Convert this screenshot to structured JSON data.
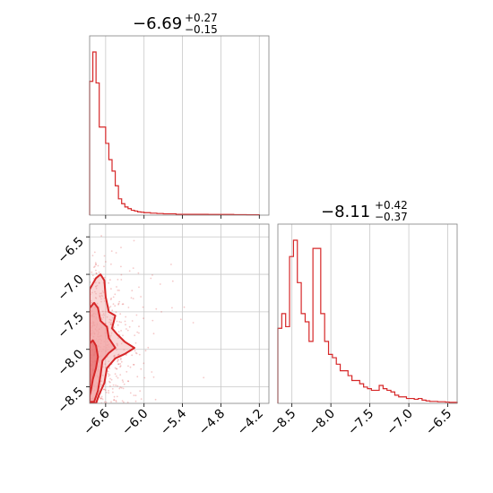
{
  "colors": {
    "line": "#d62728",
    "fill": "#f2a6a6",
    "grid": "#c8c8c8",
    "frame": "#808080"
  },
  "chart_data": [
    {
      "type": "histogram",
      "title": {
        "main": "−6.69",
        "sup": "+0.27",
        "sub": "−0.15"
      },
      "xlim": [
        -6.85,
        -4.05
      ],
      "xticks": [
        -6.6,
        -6.0,
        -5.4,
        -4.8,
        -4.2
      ],
      "bin_edges": [
        -6.85,
        -6.8,
        -6.75,
        -6.7,
        -6.65,
        -6.6,
        -6.55,
        -6.5,
        -6.45,
        -6.4,
        -6.35,
        -6.3,
        -6.25,
        -6.2,
        -6.15,
        -6.1,
        -6.05,
        -6.0,
        -5.9,
        -5.8,
        -5.7,
        -5.5,
        -5.0,
        -4.6,
        -4.4,
        -4.2
      ],
      "values": [
        0.82,
        1.0,
        0.81,
        0.54,
        0.54,
        0.44,
        0.34,
        0.27,
        0.18,
        0.1,
        0.07,
        0.05,
        0.04,
        0.03,
        0.025,
        0.02,
        0.018,
        0.015,
        0.012,
        0.01,
        0.008,
        0.005,
        0.004,
        0.003,
        0.002
      ]
    },
    {
      "type": "scatter",
      "xlabel": "",
      "ylabel": "",
      "xlim": [
        -6.85,
        -4.05
      ],
      "ylim": [
        -8.72,
        -6.33
      ],
      "xticks": [
        -6.6,
        -6.0,
        -5.4,
        -4.8,
        -4.2
      ],
      "yticks": [
        -6.5,
        -7.0,
        -7.5,
        -8.0,
        -8.5
      ],
      "xtick_labels": [
        "−6.6",
        "−6.0",
        "−5.4",
        "−4.8",
        "−4.2"
      ],
      "ytick_labels": [
        "−6.5",
        "−7.0",
        "−7.5",
        "−8.0",
        "−8.5"
      ],
      "contours": [
        {
          "level": "outer",
          "points": [
            [
              -6.85,
              -8.72
            ],
            [
              -6.85,
              -7.2
            ],
            [
              -6.75,
              -7.05
            ],
            [
              -6.68,
              -7.0
            ],
            [
              -6.62,
              -7.08
            ],
            [
              -6.6,
              -7.3
            ],
            [
              -6.55,
              -7.5
            ],
            [
              -6.45,
              -7.55
            ],
            [
              -6.5,
              -7.72
            ],
            [
              -6.42,
              -7.8
            ],
            [
              -6.3,
              -7.9
            ],
            [
              -6.15,
              -7.98
            ],
            [
              -6.3,
              -8.06
            ],
            [
              -6.45,
              -8.12
            ],
            [
              -6.58,
              -8.25
            ],
            [
              -6.62,
              -8.45
            ],
            [
              -6.7,
              -8.6
            ],
            [
              -6.75,
              -8.72
            ]
          ]
        },
        {
          "level": "mid",
          "points": [
            [
              -6.85,
              -8.7
            ],
            [
              -6.85,
              -7.45
            ],
            [
              -6.78,
              -7.38
            ],
            [
              -6.72,
              -7.45
            ],
            [
              -6.68,
              -7.62
            ],
            [
              -6.58,
              -7.7
            ],
            [
              -6.55,
              -7.85
            ],
            [
              -6.45,
              -7.98
            ],
            [
              -6.55,
              -8.05
            ],
            [
              -6.65,
              -8.15
            ],
            [
              -6.68,
              -8.35
            ],
            [
              -6.72,
              -8.55
            ],
            [
              -6.78,
              -8.7
            ]
          ]
        },
        {
          "level": "inner",
          "points": [
            [
              -6.85,
              -8.62
            ],
            [
              -6.85,
              -7.92
            ],
            [
              -6.8,
              -7.88
            ],
            [
              -6.75,
              -7.95
            ],
            [
              -6.72,
              -8.1
            ],
            [
              -6.75,
              -8.25
            ],
            [
              -6.8,
              -8.4
            ],
            [
              -6.83,
              -8.55
            ]
          ]
        }
      ]
    },
    {
      "type": "histogram",
      "title": {
        "main": "−8.11",
        "sup": "+0.42",
        "sub": "−0.37"
      },
      "xlim": [
        -8.68,
        -6.38
      ],
      "xticks": [
        -8.5,
        -8.0,
        -7.5,
        -7.0,
        -6.5
      ],
      "xtick_labels": [
        "−8.5",
        "−8.0",
        "−7.5",
        "−7.0",
        "−6.5"
      ],
      "bin_edges": [
        -8.68,
        -8.63,
        -8.58,
        -8.53,
        -8.48,
        -8.43,
        -8.38,
        -8.33,
        -8.28,
        -8.23,
        -8.18,
        -8.13,
        -8.08,
        -8.03,
        -7.98,
        -7.93,
        -7.88,
        -7.83,
        -7.78,
        -7.73,
        -7.68,
        -7.63,
        -7.58,
        -7.53,
        -7.48,
        -7.43,
        -7.38,
        -7.33,
        -7.28,
        -7.23,
        -7.18,
        -7.13,
        -7.08,
        -7.03,
        -6.98,
        -6.93,
        -6.88,
        -6.83,
        -6.78,
        -6.73,
        -6.68,
        -6.63,
        -6.58,
        -6.53,
        -6.48,
        -6.43,
        -6.38
      ],
      "values": [
        0.46,
        0.55,
        0.47,
        0.9,
        1.0,
        0.74,
        0.55,
        0.5,
        0.38,
        0.95,
        0.95,
        0.55,
        0.38,
        0.3,
        0.28,
        0.24,
        0.2,
        0.2,
        0.17,
        0.14,
        0.14,
        0.12,
        0.1,
        0.09,
        0.08,
        0.08,
        0.11,
        0.09,
        0.08,
        0.07,
        0.05,
        0.04,
        0.04,
        0.03,
        0.03,
        0.025,
        0.03,
        0.02,
        0.015,
        0.012,
        0.012,
        0.01,
        0.01,
        0.008,
        0.006,
        0.006
      ]
    }
  ]
}
